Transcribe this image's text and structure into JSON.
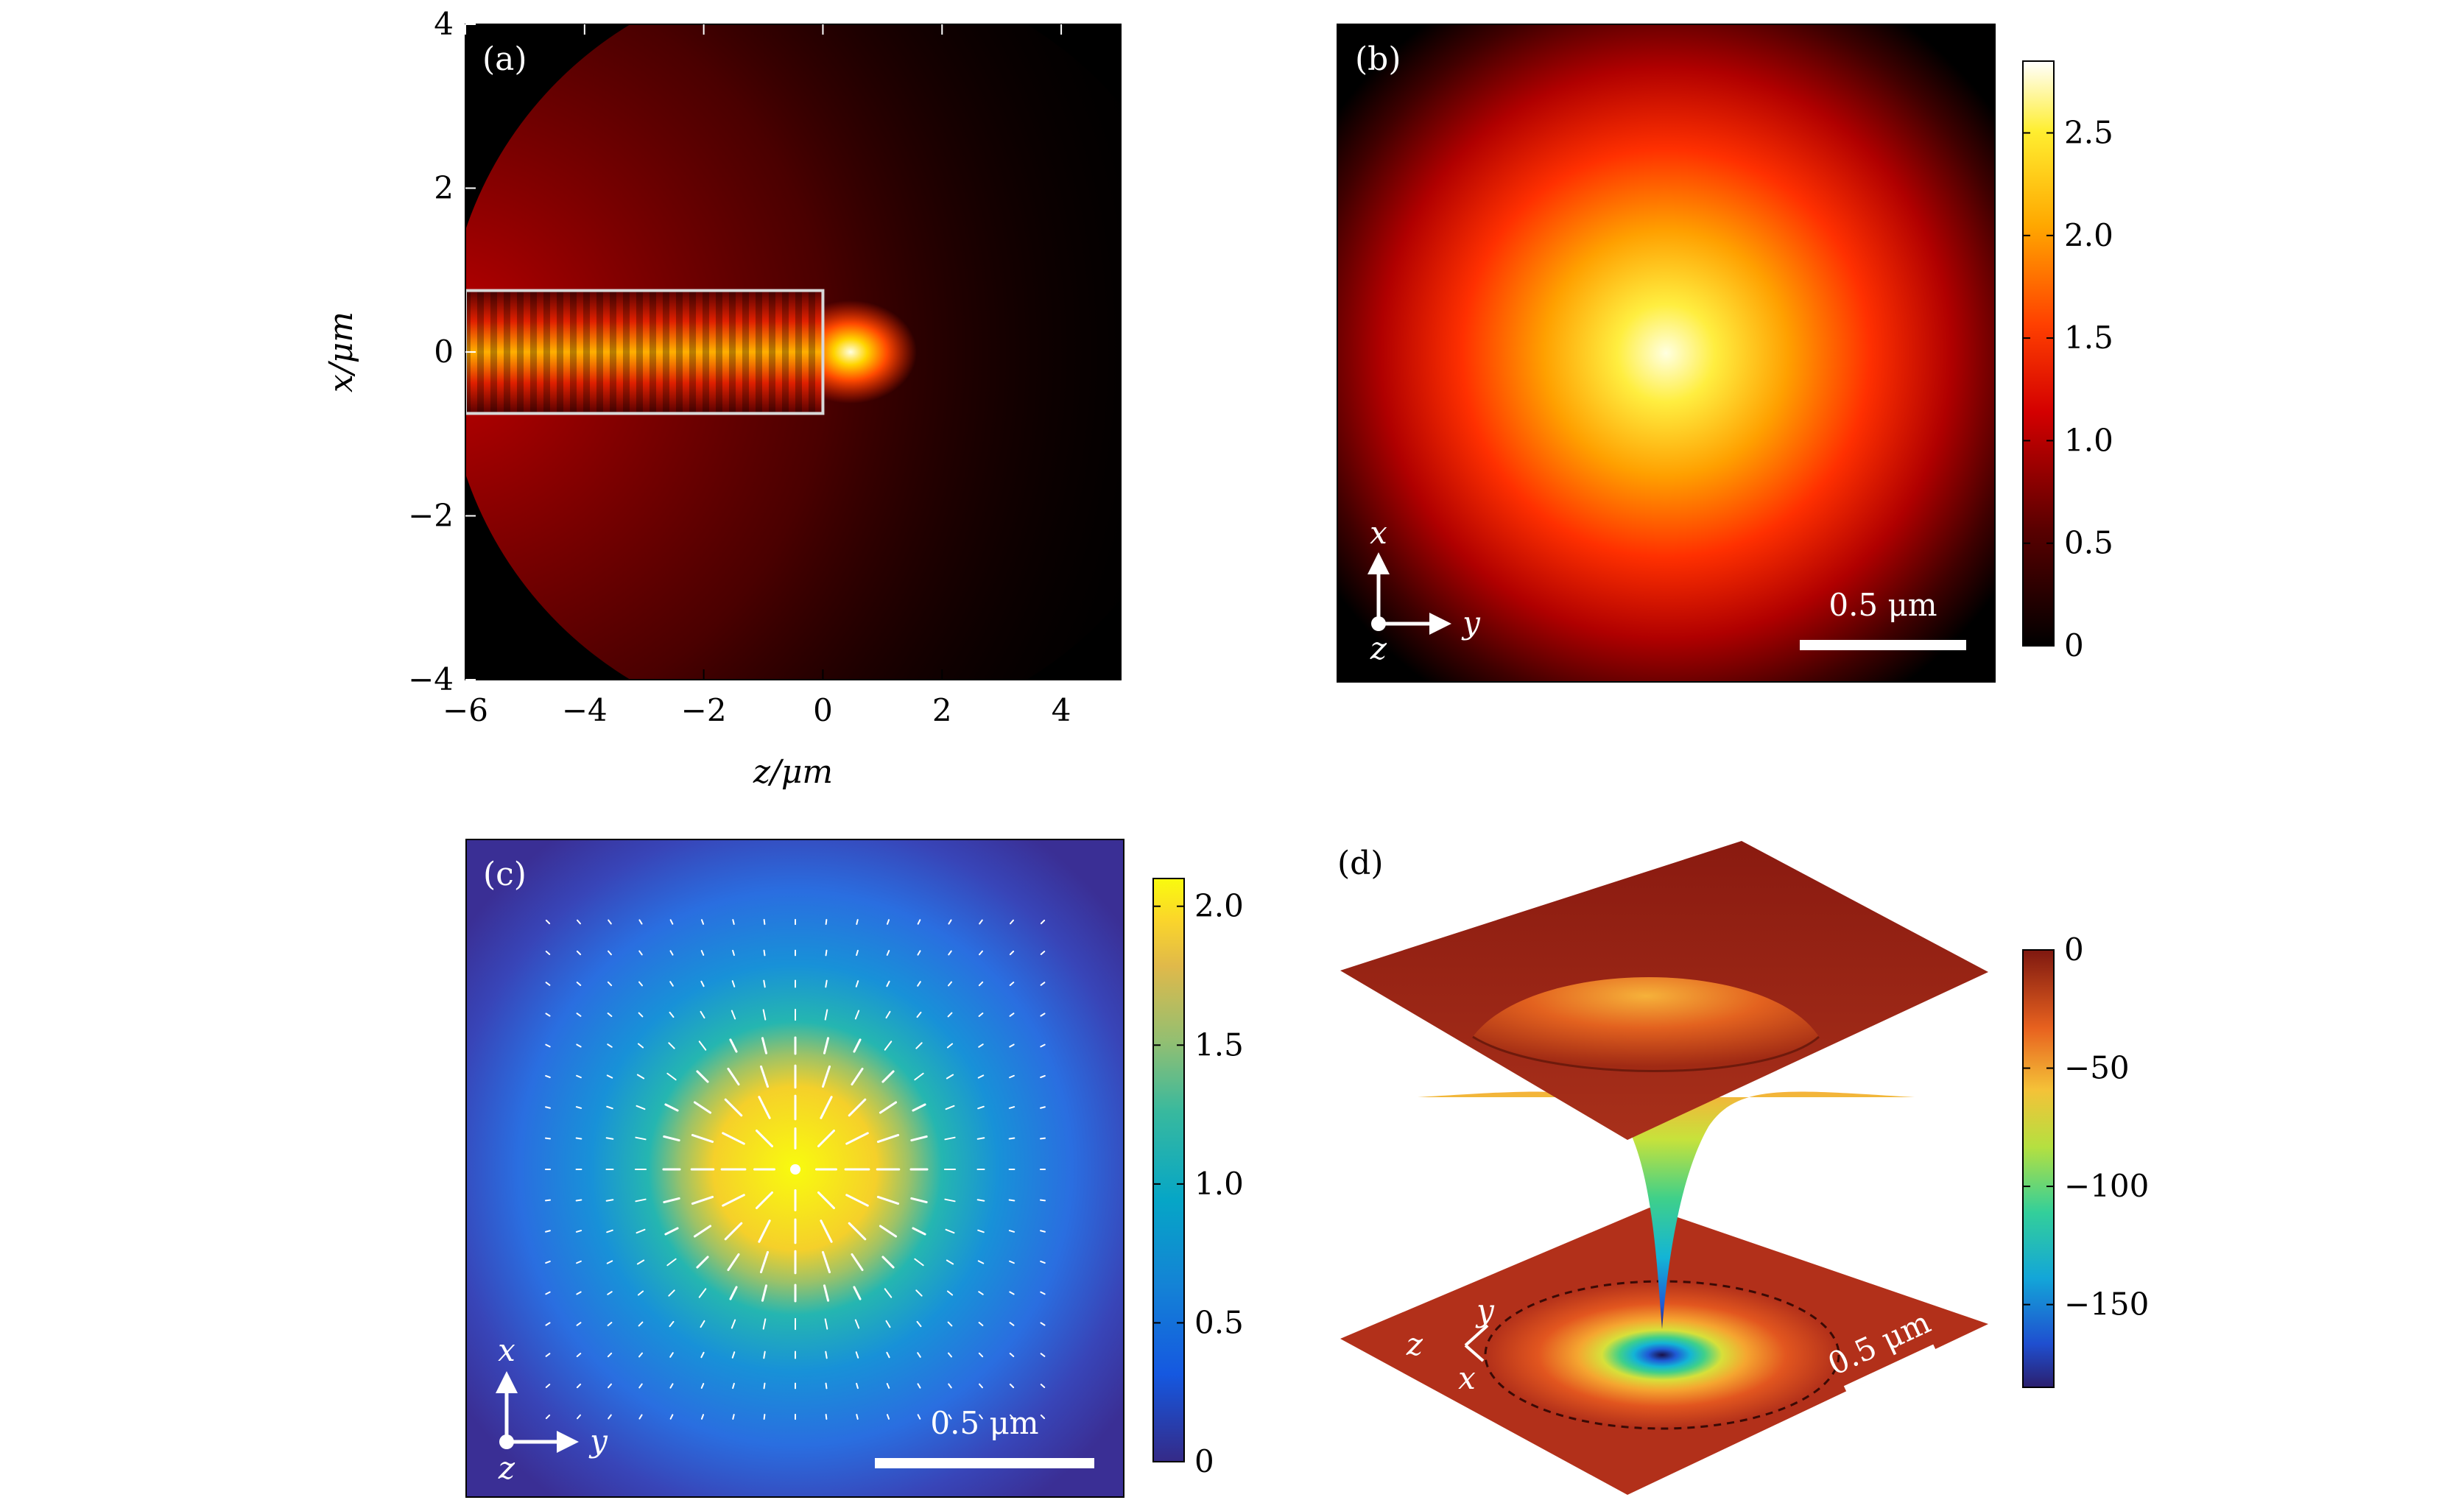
{
  "chart_data": [
    {
      "type": "heatmap",
      "panel": "(a)",
      "xlabel": "z/μm",
      "ylabel": "x/μm",
      "xlim": [
        -6,
        5
      ],
      "ylim": [
        -4,
        4
      ],
      "xticks": [
        "−6",
        "−4",
        "−2",
        "0",
        "2",
        "4"
      ],
      "xtick_values": [
        -6,
        -4,
        -2,
        0,
        2,
        4
      ],
      "yticks": [
        "−4",
        "−2",
        "0",
        "2",
        "4"
      ],
      "ytick_values": [
        -4,
        -2,
        0,
        2,
        4
      ],
      "waveguide": {
        "z_start": -6,
        "z_end": 0,
        "x_half_width": 0.75
      },
      "colormap": "hot"
    },
    {
      "type": "heatmap",
      "panel": "(b)",
      "colorbar_ticks": [
        "0",
        "0.5",
        "1.0",
        "1.5",
        "2.0",
        "2.5"
      ],
      "colorbar_values": [
        0,
        0.5,
        1.0,
        1.5,
        2.0,
        2.5
      ],
      "colorbar_max": 2.85,
      "scale_bar": "0.5 μm",
      "axes_labels": {
        "x": "x",
        "y": "y",
        "z": "z"
      },
      "colormap": "hot"
    },
    {
      "type": "heatmap",
      "panel": "(c)",
      "colorbar_ticks": [
        "0",
        "0.5",
        "1.0",
        "1.5",
        "2.0"
      ],
      "colorbar_values": [
        0,
        0.5,
        1.0,
        1.5,
        2.0
      ],
      "colorbar_max": 2.1,
      "scale_bar": "0.5 μm",
      "axes_labels": {
        "x": "x",
        "y": "y",
        "z": "z"
      },
      "overlay": "radial vector field (white arrows)",
      "colormap": "parula"
    },
    {
      "type": "surface",
      "panel": "(d)",
      "colorbar_ticks": [
        "0",
        "−50",
        "−100",
        "−150"
      ],
      "colorbar_values": [
        0,
        -50,
        -100,
        -150
      ],
      "colorbar_min": -185,
      "scale_bar": "0.5 μm",
      "axes_labels": {
        "x": "x",
        "y": "y",
        "z": "z"
      },
      "colormap": "jet"
    }
  ],
  "colors": {
    "hot": [
      "#000000",
      "#5a0000",
      "#b40000",
      "#ff2a00",
      "#ff8a00",
      "#ffd800",
      "#ffffd8"
    ],
    "parula": [
      "#352a87",
      "#0f5cdd",
      "#1481d6",
      "#06a4ca",
      "#2eb7a4",
      "#87bf77",
      "#d1bb59",
      "#fec832",
      "#f9fb0e"
    ],
    "jet": [
      "#2b1f6e",
      "#1f5bd6",
      "#13b4d6",
      "#3fd08a",
      "#c7e23b",
      "#f6b23a",
      "#e3571f",
      "#8a1a10"
    ]
  }
}
